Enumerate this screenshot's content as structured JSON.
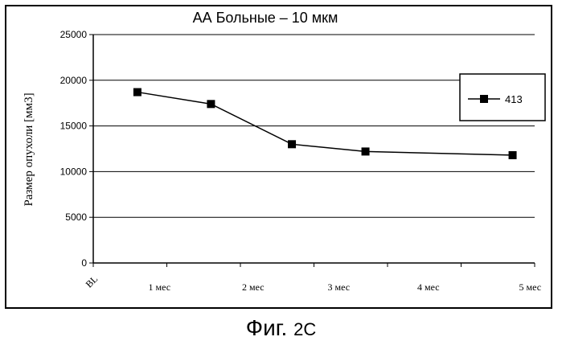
{
  "chart_data": {
    "type": "line",
    "title": "АА Больные – 10 мкм",
    "xlabel": "",
    "ylabel": "Размер опухоли [мм3]",
    "categories": [
      "BL",
      "1 мес",
      "2 мес",
      "3 мес",
      "4 мес",
      "5 мес"
    ],
    "x": [
      0,
      1,
      2,
      3,
      4,
      5
    ],
    "ylim": [
      0,
      25000
    ],
    "yticks": [
      0,
      5000,
      10000,
      15000,
      20000,
      25000
    ],
    "grid": true,
    "legend_position": "right",
    "series": [
      {
        "name": "413",
        "x": [
          0.1,
          1.1,
          2.2,
          3.2,
          4,
          5.2
        ],
        "values": [
          18700,
          17400,
          13000,
          12200,
          null,
          11800
        ],
        "color": "#000000"
      }
    ]
  },
  "caption": {
    "main": "Фиг.",
    "sub": "2С"
  }
}
